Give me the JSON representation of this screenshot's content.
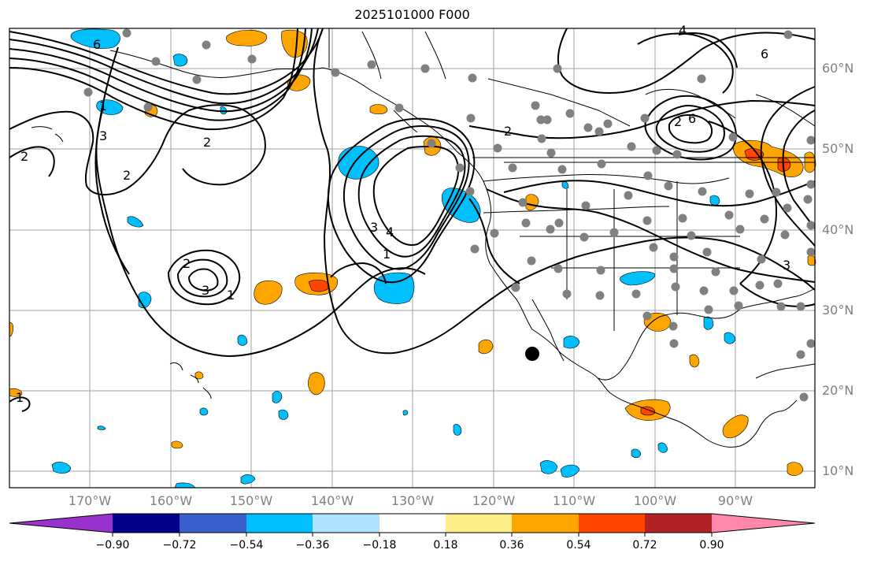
{
  "title": "2025101000 F000",
  "lat_labels": [
    "60°N",
    "50°N",
    "40°N",
    "30°N",
    "20°N",
    "10°N"
  ],
  "lon_labels": [
    "170°W",
    "160°W",
    "150°W",
    "140°W",
    "130°W",
    "120°W",
    "110°W",
    "100°W",
    "90°W"
  ],
  "contour_labels": [
    "6",
    "1",
    "3",
    "2",
    "2",
    "2",
    "3",
    "2",
    "1",
    "1",
    "3",
    "4",
    "2",
    "6",
    "4",
    "6",
    "2",
    "1",
    "3"
  ],
  "colorbar": {
    "tick_labels": [
      "−0.90",
      "−0.72",
      "−0.54",
      "−0.36",
      "−0.18",
      "0.18",
      "0.36",
      "0.54",
      "0.72",
      "0.90"
    ],
    "colors": [
      "#9932cc",
      "#00008b",
      "#3a5fcd",
      "#00bfff",
      "#b0e2ff",
      "#ffffff",
      "#ffee88",
      "#ffa500",
      "#ff4500",
      "#b22222",
      "#ff88aa"
    ]
  },
  "colors": {
    "positive_light": "#ffa500",
    "positive_strong": "#ff4500",
    "negative": "#00bfff",
    "stations": "#808080",
    "grid": "#a0a0a0"
  }
}
